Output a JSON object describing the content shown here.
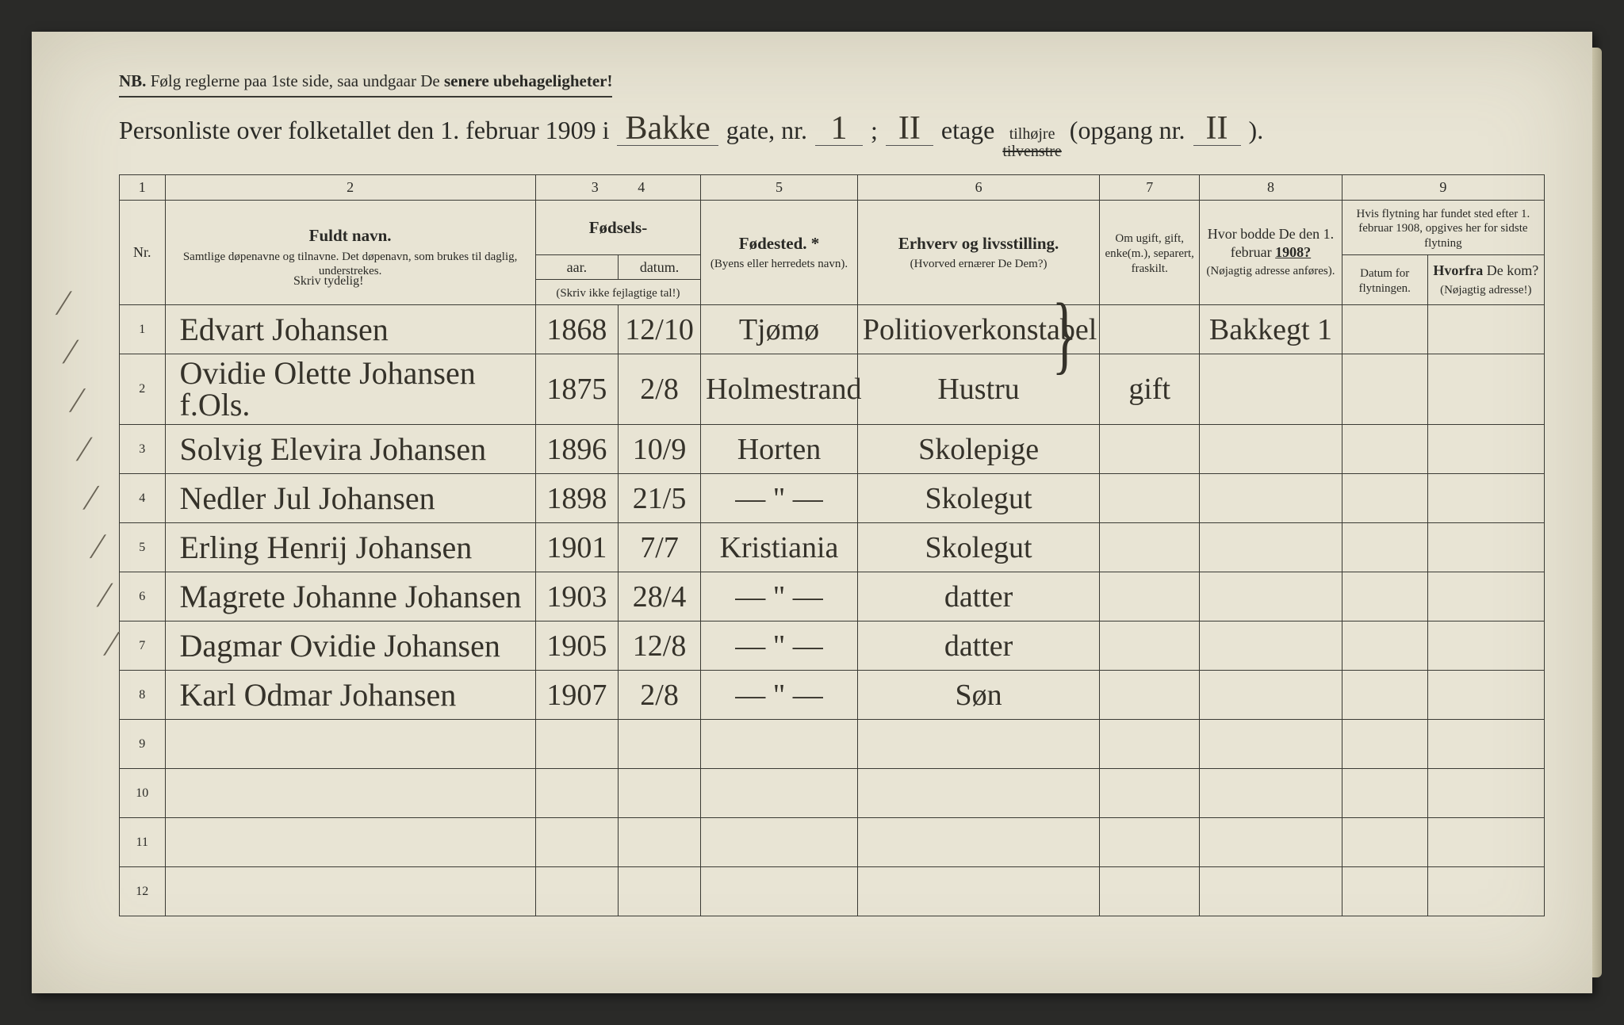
{
  "nb": {
    "prefix": "NB.",
    "text_before": "Følg reglerne paa 1ste side, saa undgaar De",
    "text_bold": "senere ubehageligheter!"
  },
  "title": {
    "t1": "Personliste over folketallet den 1. februar 1909 i",
    "street": "Bakke",
    "t2": "gate, nr.",
    "gate_nr": "1",
    "semicolon": ";",
    "etage_val": "II",
    "t3": "etage",
    "tilhojre": "tilhøjre",
    "tilvenstre": "tilvenstre",
    "t4": "(opgang nr.",
    "opgang_nr": "II",
    "t5": ")."
  },
  "header": {
    "colnums": [
      "1",
      "2",
      "3",
      "4",
      "5",
      "6",
      "7",
      "8",
      "9"
    ],
    "nr": "Nr.",
    "navn_bold": "Fuldt navn.",
    "navn_sub": "Samtlige døpenavne og tilnavne. Det døpenavn, som brukes til daglig, understrekes.",
    "fodsels": "Fødsels-",
    "aar": "aar.",
    "datum": "datum.",
    "skriv_ikke": "(Skriv ikke fejlagtige tal!)",
    "fodested_bold": "Fødested. *",
    "fodested_sub": "(Byens eller herredets navn).",
    "erhverv_bold": "Erhverv og livsstilling.",
    "erhverv_sub": "(Hvorved ernærer De Dem?)",
    "ugift": "Om ugift, gift, enke(m.), separert, fraskilt.",
    "hvor_bodde": "Hvor bodde De den 1. februar",
    "hvor_year": "1908?",
    "hvor_sub": "(Nøjagtig adresse anføres).",
    "flytning_top": "Hvis flytning har fundet sted efter 1. februar 1908, opgives her for sidste flytning",
    "flyt_datum": "Datum for flytningen.",
    "hvorfra_bold": "Hvorfra",
    "hvorfra_rest": "De kom?",
    "hvorfra_sub": "(Nøjagtig adresse!)",
    "skriv_tydelig": "Skriv tydelig!"
  },
  "rows": [
    {
      "nr": "1",
      "name": "Edvart Johansen",
      "aar": "1868",
      "datum": "12/10",
      "sted": "Tjømø",
      "erhverv": "Politioverkonstabel",
      "status": "",
      "bodde": "Bakkegt 1",
      "flytdat": "",
      "hvorfra": ""
    },
    {
      "nr": "2",
      "name": "Ovidie Olette Johansen f.Ols.",
      "aar": "1875",
      "datum": "2/8",
      "sted": "Holmestrand",
      "erhverv": "Hustru",
      "status": "gift",
      "bodde": "",
      "flytdat": "",
      "hvorfra": ""
    },
    {
      "nr": "3",
      "name": "Solvig Elevira Johansen",
      "aar": "1896",
      "datum": "10/9",
      "sted": "Horten",
      "erhverv": "Skolepige",
      "status": "",
      "bodde": "",
      "flytdat": "",
      "hvorfra": ""
    },
    {
      "nr": "4",
      "name": "Nedler Jul Johansen",
      "aar": "1898",
      "datum": "21/5",
      "sted": "— \" —",
      "erhverv": "Skolegut",
      "status": "",
      "bodde": "",
      "flytdat": "",
      "hvorfra": ""
    },
    {
      "nr": "5",
      "name": "Erling Henrij Johansen",
      "aar": "1901",
      "datum": "7/7",
      "sted": "Kristiania",
      "erhverv": "Skolegut",
      "status": "",
      "bodde": "",
      "flytdat": "",
      "hvorfra": ""
    },
    {
      "nr": "6",
      "name": "Magrete Johanne Johansen",
      "aar": "1903",
      "datum": "28/4",
      "sted": "— \" —",
      "erhverv": "datter",
      "status": "",
      "bodde": "",
      "flytdat": "",
      "hvorfra": ""
    },
    {
      "nr": "7",
      "name": "Dagmar Ovidie Johansen",
      "aar": "1905",
      "datum": "12/8",
      "sted": "— \" —",
      "erhverv": "datter",
      "status": "",
      "bodde": "",
      "flytdat": "",
      "hvorfra": ""
    },
    {
      "nr": "8",
      "name": "Karl Odmar Johansen",
      "aar": "1907",
      "datum": "2/8",
      "sted": "— \" —",
      "erhverv": "Søn",
      "status": "",
      "bodde": "",
      "flytdat": "",
      "hvorfra": ""
    },
    {
      "nr": "9",
      "name": "",
      "aar": "",
      "datum": "",
      "sted": "",
      "erhverv": "",
      "status": "",
      "bodde": "",
      "flytdat": "",
      "hvorfra": ""
    },
    {
      "nr": "10",
      "name": "",
      "aar": "",
      "datum": "",
      "sted": "",
      "erhverv": "",
      "status": "",
      "bodde": "",
      "flytdat": "",
      "hvorfra": ""
    },
    {
      "nr": "11",
      "name": "",
      "aar": "",
      "datum": "",
      "sted": "",
      "erhverv": "",
      "status": "",
      "bodde": "",
      "flytdat": "",
      "hvorfra": ""
    },
    {
      "nr": "12",
      "name": "",
      "aar": "",
      "datum": "",
      "sted": "",
      "erhverv": "",
      "status": "",
      "bodde": "",
      "flytdat": "",
      "hvorfra": ""
    }
  ],
  "colors": {
    "paper": "#e8e4d4",
    "ink_print": "#2a2a26",
    "ink_hand": "#35322a",
    "border": "#3a3a34"
  },
  "col_widths_pct": [
    3.2,
    26,
    5.8,
    5.8,
    11,
    17,
    7,
    10,
    6,
    8.2
  ]
}
